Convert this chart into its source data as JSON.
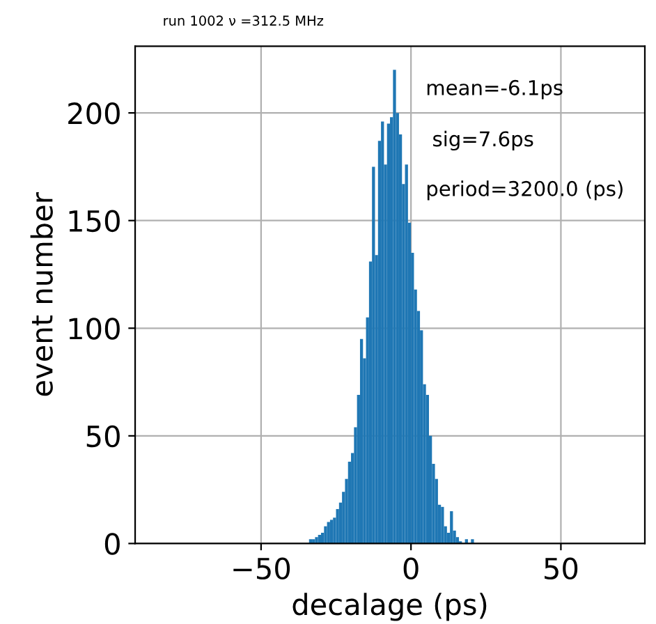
{
  "chart_data": {
    "type": "histogram",
    "title": "run 1002 ν =312.5 MHz",
    "xlabel": "decalage (ps)",
    "ylabel": "event number",
    "annotations": [
      "mean=-6.1ps",
      " sig=7.6ps",
      "period=3200.0 (ps)"
    ],
    "bins": [
      -35,
      -34,
      -33,
      -32,
      -31,
      -30,
      -29,
      -28,
      -27,
      -26,
      -25,
      -24,
      -23,
      -22,
      -21,
      -20,
      -19,
      -18,
      -17,
      -16,
      -15,
      -14,
      -13,
      -12,
      -11,
      -10,
      -9,
      -8,
      -7,
      -6,
      -5,
      -4,
      -3,
      -2,
      -1,
      0,
      1,
      2,
      3,
      4,
      5,
      6,
      7,
      8,
      9,
      10,
      11,
      12,
      13,
      14,
      15,
      16,
      17,
      18,
      19,
      20,
      21
    ],
    "values": [
      0,
      2,
      2,
      3,
      4,
      5,
      8,
      10,
      11,
      12,
      16,
      19,
      24,
      30,
      38,
      42,
      54,
      69,
      95,
      86,
      105,
      131,
      175,
      134,
      187,
      196,
      176,
      195,
      198,
      220,
      200,
      190,
      167,
      176,
      149,
      135,
      118,
      108,
      99,
      74,
      69,
      50,
      37,
      30,
      18,
      17,
      8,
      5,
      15,
      6,
      3,
      1,
      0,
      2,
      0,
      2
    ],
    "color": "#1f77b4",
    "xlim": [
      -92,
      78
    ],
    "xticks": [
      {
        "value": -50,
        "label": "−50"
      },
      0,
      50
    ],
    "ylim": [
      0,
      231
    ],
    "yticks": [
      0,
      50,
      100,
      150,
      200
    ],
    "grid": true,
    "legend": false
  }
}
